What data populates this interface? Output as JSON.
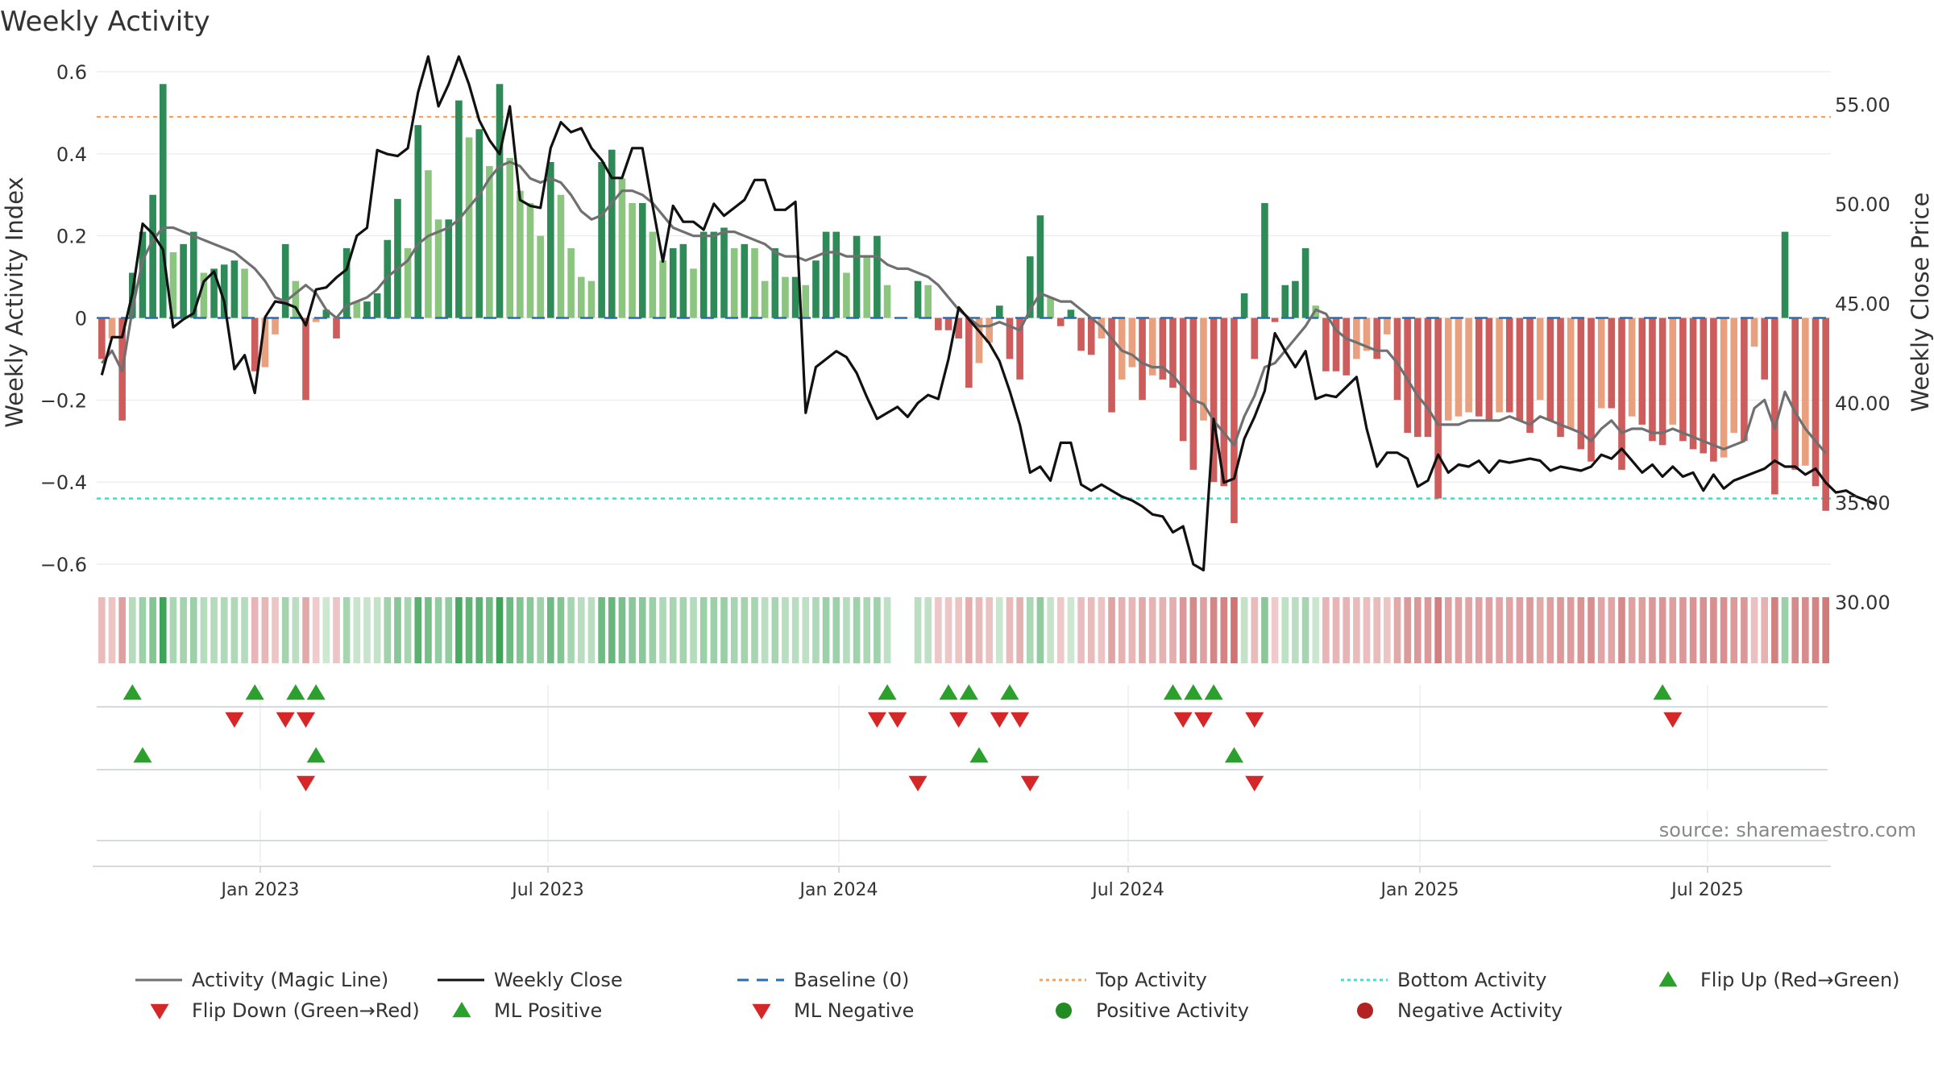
{
  "chart_data": {
    "type": "bar",
    "title": "Weekly Activity",
    "ylabel": "Weekly Activity Index",
    "y2label": "Weekly Close Price",
    "ylim": [
      -0.6,
      0.6
    ],
    "y2lim": [
      30,
      57
    ],
    "yticks": [
      "0.6",
      "0.4",
      "0.2",
      "0",
      "−0.2",
      "−0.4",
      "−0.6"
    ],
    "y2ticks": [
      "55.00",
      "50.00",
      "45.00",
      "40.00",
      "35.00",
      "30.00"
    ],
    "xticks": [
      "Jan 2023",
      "Jul 2023",
      "Jan 2024",
      "Jul 2024",
      "Jan 2025",
      "Jul 2025"
    ],
    "top_activity": 0.49,
    "bottom_activity": -0.44,
    "source": "source: sharemaestro.com",
    "legend": [
      "Activity (Magic Line)",
      "Weekly Close",
      "Baseline (0)",
      "Top Activity",
      "Bottom Activity",
      "Flip Up (Red→Green)",
      "Flip Down (Green→Red)",
      "ML Positive",
      "ML Negative",
      "Positive Activity",
      "Negative Activity"
    ],
    "activity": [
      -0.1,
      -0.05,
      -0.25,
      0.11,
      0.21,
      0.3,
      0.57,
      0.16,
      0.18,
      0.21,
      0.11,
      0.12,
      0.13,
      0.14,
      0.12,
      -0.13,
      -0.12,
      -0.04,
      0.18,
      0.09,
      -0.2,
      -0.01,
      0.02,
      -0.05,
      0.17,
      0.04,
      0.04,
      0.06,
      0.19,
      0.29,
      0.17,
      0.47,
      0.36,
      0.24,
      0.24,
      0.53,
      0.44,
      0.46,
      0.37,
      0.57,
      0.39,
      0.31,
      0.28,
      0.2,
      0.38,
      0.3,
      0.17,
      0.1,
      0.09,
      0.38,
      0.41,
      0.34,
      0.28,
      0.28,
      0.21,
      0.14,
      0.17,
      0.18,
      0.12,
      0.21,
      0.21,
      0.22,
      0.17,
      0.18,
      0.17,
      0.09,
      0.17,
      0.1,
      0.1,
      0.08,
      0.14,
      0.21,
      0.21,
      0.11,
      0.2,
      0.15,
      0.2,
      0.08,
      0.0,
      0.0,
      0.09,
      0.08,
      -0.03,
      -0.03,
      -0.05,
      -0.17,
      -0.11,
      -0.06,
      0.03,
      -0.1,
      -0.15,
      0.15,
      0.25,
      0.05,
      -0.02,
      0.02,
      -0.08,
      -0.09,
      -0.05,
      -0.23,
      -0.15,
      -0.12,
      -0.2,
      -0.14,
      -0.15,
      -0.17,
      -0.3,
      -0.37,
      -0.25,
      -0.4,
      -0.41,
      -0.5,
      0.06,
      -0.1,
      0.28,
      -0.01,
      0.08,
      0.09,
      0.17,
      0.03,
      -0.13,
      -0.13,
      -0.14,
      -0.1,
      -0.08,
      -0.1,
      -0.04,
      -0.2,
      -0.28,
      -0.29,
      -0.29,
      -0.44,
      -0.25,
      -0.24,
      -0.23,
      -0.24,
      -0.25,
      -0.23,
      -0.23,
      -0.25,
      -0.28,
      -0.2,
      -0.25,
      -0.29,
      -0.27,
      -0.32,
      -0.35,
      -0.22,
      -0.22,
      -0.37,
      -0.24,
      -0.26,
      -0.3,
      -0.31,
      -0.26,
      -0.3,
      -0.32,
      -0.33,
      -0.35,
      -0.34,
      -0.28,
      -0.3,
      -0.07,
      -0.15,
      -0.43,
      0.21,
      -0.37,
      -0.36,
      -0.41,
      -0.47
    ],
    "close": [
      41.4,
      43.3,
      43.3,
      45.5,
      49.0,
      48.5,
      47.7,
      43.8,
      44.2,
      44.5,
      46.1,
      46.6,
      45.1,
      41.7,
      42.4,
      40.5,
      44.3,
      45.1,
      45.0,
      44.8,
      43.9,
      45.7,
      45.8,
      46.3,
      46.7,
      48.4,
      48.8,
      52.7,
      52.5,
      52.4,
      52.8,
      55.6,
      57.4,
      54.9,
      56.0,
      57.4,
      56.0,
      54.2,
      53.2,
      52.5,
      54.9,
      50.2,
      49.9,
      49.8,
      52.8,
      54.1,
      53.6,
      53.8,
      52.8,
      52.2,
      51.3,
      51.3,
      52.8,
      52.8,
      49.9,
      47.1,
      49.9,
      49.1,
      49.1,
      48.7,
      50.0,
      49.4,
      49.8,
      50.2,
      51.2,
      51.2,
      49.7,
      49.7,
      50.1,
      39.5,
      41.8,
      42.2,
      42.6,
      42.3,
      41.5,
      40.3,
      39.2,
      39.5,
      39.8,
      39.3,
      40.0,
      40.4,
      40.2,
      42.2,
      44.8,
      44.2,
      43.6,
      43.0,
      42.1,
      40.6,
      38.9,
      36.5,
      36.8,
      36.1,
      38.0,
      38.0,
      35.9,
      35.6,
      35.9,
      35.6,
      35.3,
      35.1,
      34.8,
      34.4,
      34.3,
      33.5,
      33.8,
      31.9,
      31.6,
      39.2,
      36.0,
      36.2,
      38.2,
      39.3,
      40.6,
      43.5,
      42.6,
      41.8,
      42.6,
      40.2,
      40.4,
      40.3,
      40.8,
      41.3,
      38.7,
      36.8,
      37.5,
      37.5,
      37.2,
      35.8,
      36.1,
      37.4,
      36.5,
      36.9,
      36.8,
      37.1,
      36.5,
      37.1,
      37.0,
      37.1,
      37.2,
      37.1,
      36.6,
      36.8,
      36.7,
      36.6,
      36.8,
      37.4,
      37.2,
      37.7,
      37.1,
      36.5,
      36.9,
      36.3,
      36.8,
      36.3,
      36.5,
      35.6,
      36.4,
      35.7,
      36.1,
      36.3,
      36.5,
      36.7,
      37.1,
      36.8,
      36.8,
      36.4,
      36.7,
      36.0,
      35.5,
      35.6,
      35.3,
      35.1,
      34.9
    ],
    "magic": [
      -0.11,
      -0.08,
      -0.13,
      0.02,
      0.14,
      0.19,
      0.22,
      0.22,
      0.21,
      0.2,
      0.19,
      0.18,
      0.17,
      0.16,
      0.14,
      0.12,
      0.09,
      0.05,
      0.04,
      0.06,
      0.08,
      0.06,
      0.02,
      0.0,
      0.03,
      0.04,
      0.05,
      0.07,
      0.1,
      0.12,
      0.14,
      0.18,
      0.2,
      0.21,
      0.22,
      0.24,
      0.27,
      0.3,
      0.34,
      0.37,
      0.38,
      0.37,
      0.34,
      0.33,
      0.34,
      0.33,
      0.3,
      0.26,
      0.24,
      0.25,
      0.28,
      0.31,
      0.31,
      0.3,
      0.28,
      0.25,
      0.22,
      0.21,
      0.2,
      0.2,
      0.2,
      0.21,
      0.21,
      0.2,
      0.19,
      0.18,
      0.16,
      0.15,
      0.15,
      0.14,
      0.15,
      0.16,
      0.16,
      0.15,
      0.15,
      0.15,
      0.15,
      0.13,
      0.12,
      0.12,
      0.11,
      0.1,
      0.08,
      0.05,
      0.02,
      0.0,
      -0.02,
      -0.02,
      -0.01,
      -0.02,
      -0.03,
      0.02,
      0.06,
      0.05,
      0.04,
      0.04,
      0.02,
      0.0,
      -0.02,
      -0.05,
      -0.08,
      -0.09,
      -0.11,
      -0.12,
      -0.12,
      -0.14,
      -0.17,
      -0.2,
      -0.21,
      -0.25,
      -0.28,
      -0.31,
      -0.24,
      -0.19,
      -0.12,
      -0.11,
      -0.08,
      -0.05,
      -0.02,
      0.02,
      0.01,
      -0.03,
      -0.05,
      -0.06,
      -0.07,
      -0.08,
      -0.08,
      -0.11,
      -0.15,
      -0.19,
      -0.22,
      -0.26,
      -0.26,
      -0.26,
      -0.25,
      -0.25,
      -0.25,
      -0.25,
      -0.24,
      -0.25,
      -0.26,
      -0.24,
      -0.25,
      -0.26,
      -0.27,
      -0.28,
      -0.3,
      -0.27,
      -0.25,
      -0.28,
      -0.27,
      -0.27,
      -0.28,
      -0.28,
      -0.27,
      -0.28,
      -0.29,
      -0.3,
      -0.31,
      -0.32,
      -0.31,
      -0.3,
      -0.22,
      -0.2,
      -0.27,
      -0.18,
      -0.23,
      -0.27,
      -0.3,
      -0.33
    ],
    "strip": [
      -0.1,
      -0.05,
      -0.25,
      0.11,
      0.21,
      0.3,
      0.57,
      0.16,
      0.18,
      0.21,
      0.11,
      0.12,
      0.13,
      0.14,
      0.12,
      -0.13,
      -0.12,
      -0.04,
      0.18,
      0.09,
      -0.2,
      -0.01,
      0.02,
      -0.05,
      0.17,
      0.04,
      0.04,
      0.06,
      0.19,
      0.29,
      0.17,
      0.47,
      0.36,
      0.24,
      0.24,
      0.53,
      0.44,
      0.46,
      0.37,
      0.57,
      0.39,
      0.31,
      0.28,
      0.2,
      0.38,
      0.3,
      0.17,
      0.1,
      0.09,
      0.38,
      0.41,
      0.34,
      0.28,
      0.28,
      0.21,
      0.14,
      0.17,
      0.18,
      0.12,
      0.21,
      0.21,
      0.22,
      0.17,
      0.18,
      0.17,
      0.09,
      0.17,
      0.1,
      0.1,
      0.08,
      0.14,
      0.21,
      0.21,
      0.11,
      0.2,
      0.15,
      0.2,
      0.08,
      0.0,
      0.0,
      0.09,
      0.08,
      -0.03,
      -0.03,
      -0.05,
      -0.17,
      -0.11,
      -0.06,
      0.03,
      -0.1,
      -0.15,
      0.15,
      0.25,
      0.05,
      -0.02,
      0.02,
      -0.08,
      -0.09,
      -0.05,
      -0.23,
      -0.15,
      -0.12,
      -0.2,
      -0.14,
      -0.15,
      -0.17,
      -0.3,
      -0.37,
      -0.25,
      -0.4,
      -0.41,
      -0.5,
      0.06,
      -0.1,
      0.28,
      -0.01,
      0.08,
      0.09,
      0.17,
      0.03,
      -0.13,
      -0.13,
      -0.14,
      -0.1,
      -0.08,
      -0.1,
      -0.04,
      -0.2,
      -0.28,
      -0.29,
      -0.29,
      -0.44,
      -0.25,
      -0.24,
      -0.23,
      -0.24,
      -0.25,
      -0.23,
      -0.23,
      -0.25,
      -0.28,
      -0.2,
      -0.25,
      -0.29,
      -0.27,
      -0.32,
      -0.35,
      -0.22,
      -0.22,
      -0.37,
      -0.24,
      -0.26,
      -0.3,
      -0.31,
      -0.26,
      -0.3,
      -0.32,
      -0.33,
      -0.35,
      -0.34,
      -0.28,
      -0.3,
      -0.07,
      -0.15,
      -0.43,
      0.21,
      -0.37,
      -0.36,
      -0.41,
      -0.47
    ],
    "flip_up_weeks": [
      3,
      15,
      19,
      21,
      77,
      83,
      85,
      89,
      105,
      107,
      109,
      153
    ],
    "flip_down_weeks": [
      13,
      18,
      20,
      76,
      78,
      84,
      88,
      90,
      106,
      108,
      113,
      154
    ],
    "ml_positive_weeks": [
      4,
      21,
      86,
      111
    ],
    "ml_negative_weeks": [
      20,
      80,
      91,
      113
    ],
    "colors": {
      "pos_dark": "#2e8b57",
      "pos_light": "#8cc57f",
      "neg_dark": "#cd5c5c",
      "neg_light": "#e9a07e",
      "magic": "#707070",
      "close": "#111111",
      "baseline": "#2b6cb0",
      "top": "#f4a460",
      "bottom": "#40e0d0",
      "up": "#2ca02c",
      "down": "#d62728",
      "pos_dot": "#228b22",
      "neg_dot": "#b22222"
    }
  }
}
